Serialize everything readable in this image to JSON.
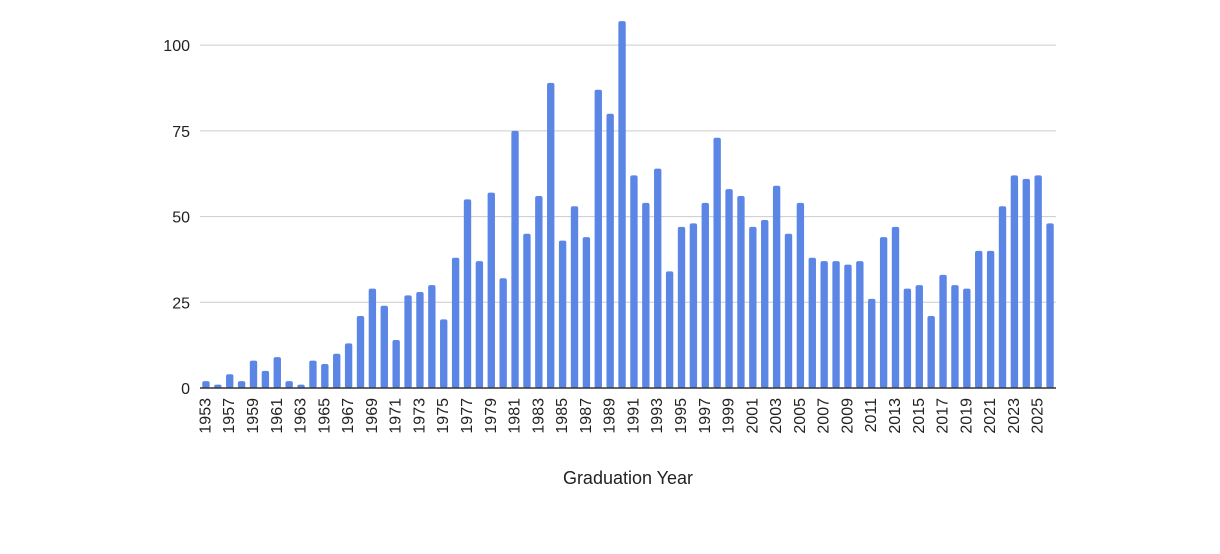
{
  "chart_data": {
    "type": "bar",
    "title": "",
    "xlabel": "Graduation Year",
    "ylabel": "",
    "ylim": [
      0,
      105
    ],
    "yticks": [
      0,
      25,
      50,
      75,
      100
    ],
    "ytick_labels": [
      "0",
      "25",
      "50",
      "75",
      "100"
    ],
    "grid": "horizontal",
    "legend": "none",
    "bar_color": "#5b86e5",
    "categories": [
      "1953",
      "1955",
      "1957",
      "1958",
      "1959",
      "1960",
      "1961",
      "1962",
      "1963",
      "1964",
      "1965",
      "1966",
      "1967",
      "1968",
      "1969",
      "1970",
      "1971",
      "1972",
      "1973",
      "1974",
      "1975",
      "1976",
      "1977",
      "1978",
      "1979",
      "1980",
      "1981",
      "1982",
      "1983",
      "1984",
      "1985",
      "1986",
      "1987",
      "1988",
      "1989",
      "1990",
      "1991",
      "1992",
      "1993",
      "1994",
      "1995",
      "1996",
      "1997",
      "1998",
      "1999",
      "2000",
      "2001",
      "2002",
      "2003",
      "2004",
      "2005",
      "2006",
      "2007",
      "2008",
      "2009",
      "2010",
      "2011",
      "2012",
      "2013",
      "2014",
      "2015",
      "2016",
      "2017",
      "2018",
      "2019",
      "2020",
      "2021",
      "2022",
      "2023",
      "2024",
      "2025",
      "2026"
    ],
    "values": [
      2,
      1,
      4,
      2,
      8,
      5,
      9,
      2,
      1,
      8,
      7,
      10,
      13,
      21,
      29,
      24,
      14,
      27,
      28,
      30,
      20,
      38,
      55,
      37,
      57,
      32,
      75,
      45,
      56,
      89,
      43,
      53,
      44,
      87,
      80,
      107,
      62,
      54,
      64,
      34,
      47,
      48,
      54,
      73,
      58,
      56,
      47,
      49,
      59,
      45,
      54,
      38,
      37,
      37,
      36,
      37,
      26,
      44,
      47,
      29,
      30,
      21,
      33,
      30,
      29,
      40,
      40,
      53,
      62,
      61,
      62,
      48
    ],
    "xtick_labels": [
      "1953",
      "1957",
      "1959",
      "1961",
      "1963",
      "1965",
      "1967",
      "1969",
      "1971",
      "1973",
      "1975",
      "1977",
      "1979",
      "1981",
      "1983",
      "1985",
      "1987",
      "1989",
      "1991",
      "1993",
      "1995",
      "1997",
      "1999",
      "2001",
      "2003",
      "2005",
      "2007",
      "2009",
      "2011",
      "2013",
      "2015",
      "2017",
      "2019",
      "2021",
      "2023",
      "2025"
    ]
  }
}
